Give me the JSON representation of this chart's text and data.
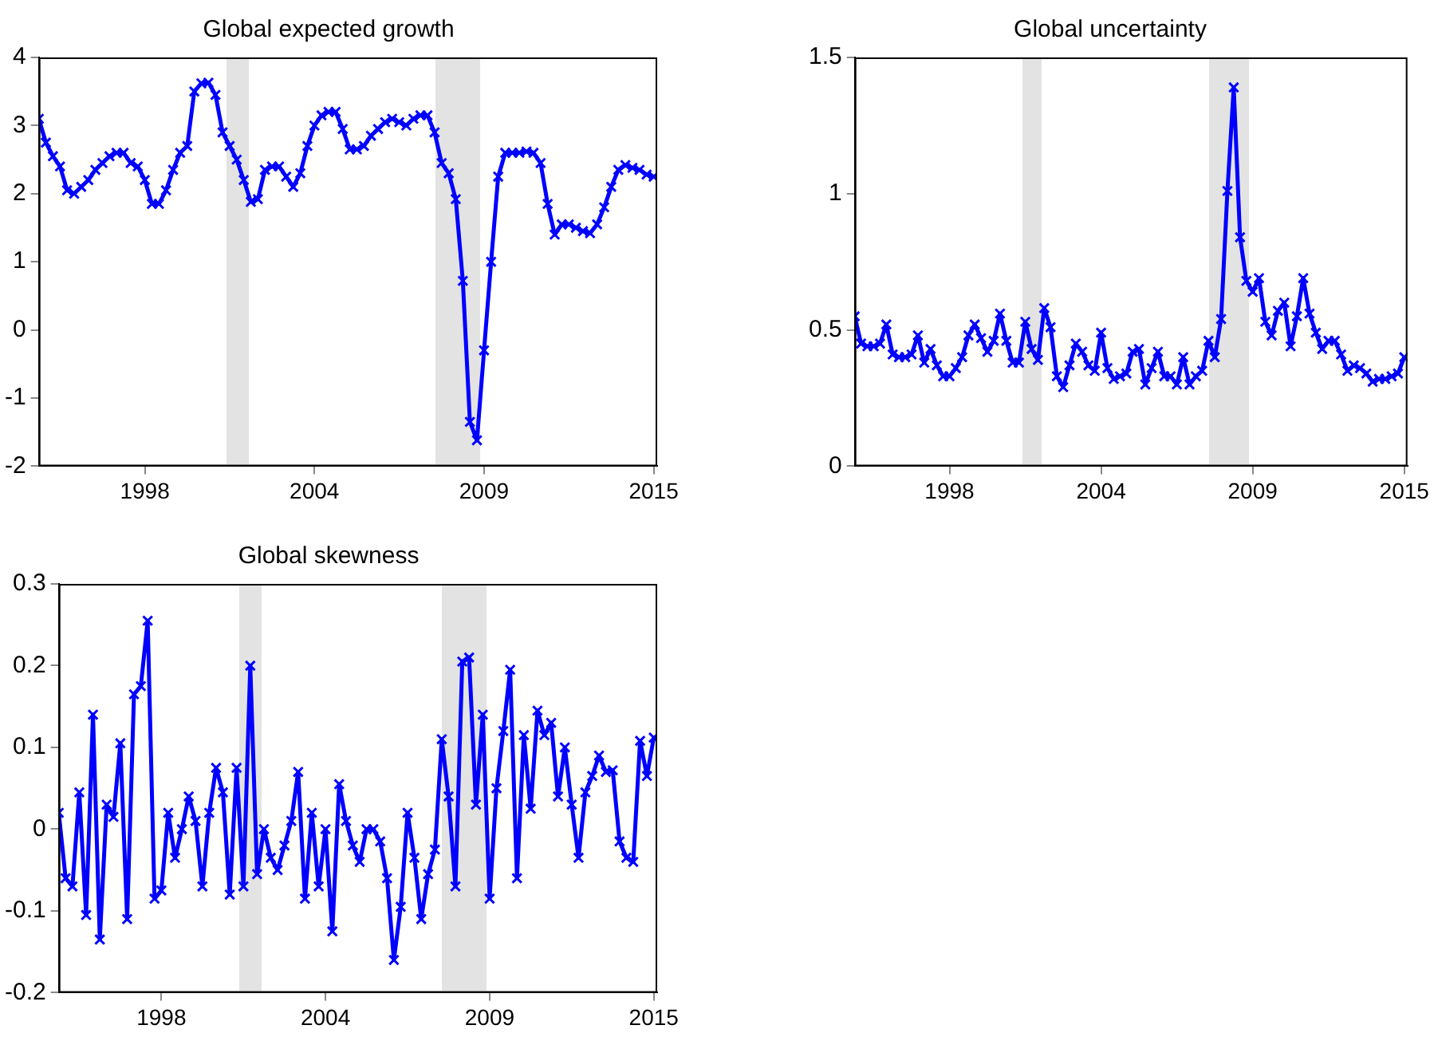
{
  "chart_data": [
    {
      "type": "line",
      "title": "Global expected growth",
      "categories": [
        null,
        null,
        null,
        null,
        null,
        null,
        null,
        null,
        null,
        null,
        null,
        null,
        null,
        null,
        null,
        "1998",
        null,
        null,
        null,
        null,
        null,
        null,
        null,
        null,
        null,
        null,
        null,
        null,
        null,
        null,
        null,
        null,
        null,
        null,
        null,
        null,
        null,
        null,
        null,
        "2004",
        null,
        null,
        null,
        null,
        null,
        null,
        null,
        null,
        null,
        null,
        null,
        null,
        null,
        null,
        null,
        null,
        null,
        null,
        null,
        null,
        null,
        null,
        null,
        "2009",
        null,
        null,
        null,
        null,
        null,
        null,
        null,
        null,
        null,
        null,
        null,
        null,
        null,
        null,
        null,
        null,
        null,
        null,
        null,
        null,
        null,
        null,
        null,
        "2015"
      ],
      "series": [
        {
          "color": "#0000ff",
          "values": [
            3.1,
            2.75,
            2.55,
            2.4,
            2.05,
            2.0,
            2.1,
            2.2,
            2.35,
            2.45,
            2.55,
            2.6,
            2.6,
            2.45,
            2.4,
            2.2,
            1.85,
            1.85,
            2.05,
            2.35,
            2.6,
            2.7,
            3.5,
            3.62,
            3.63,
            3.45,
            2.9,
            2.7,
            2.5,
            2.2,
            1.88,
            1.92,
            2.35,
            2.4,
            2.4,
            2.25,
            2.1,
            2.3,
            2.7,
            3.0,
            3.15,
            3.2,
            3.2,
            2.95,
            2.65,
            2.65,
            2.7,
            2.85,
            2.95,
            3.05,
            3.1,
            3.05,
            3.0,
            3.1,
            3.15,
            3.15,
            2.9,
            2.45,
            2.3,
            1.92,
            0.72,
            -1.35,
            -1.62,
            -0.3,
            1.0,
            2.25,
            2.6,
            2.6,
            2.6,
            2.62,
            2.6,
            2.45,
            1.85,
            1.4,
            1.55,
            1.55,
            1.5,
            1.45,
            1.42,
            1.55,
            1.8,
            2.1,
            2.35,
            2.42,
            2.38,
            2.35,
            2.28,
            2.25
          ]
        }
      ],
      "ylim": [
        -2,
        4
      ],
      "yticks": [
        -2,
        -1,
        0,
        1,
        2,
        3,
        4
      ],
      "marker": "cross",
      "line_style": "solid"
    },
    {
      "type": "line",
      "title": "Global uncertainty",
      "categories": [
        null,
        null,
        null,
        null,
        null,
        null,
        null,
        null,
        null,
        null,
        null,
        null,
        null,
        null,
        null,
        "1998",
        null,
        null,
        null,
        null,
        null,
        null,
        null,
        null,
        null,
        null,
        null,
        null,
        null,
        null,
        null,
        null,
        null,
        null,
        null,
        null,
        null,
        null,
        null,
        "2004",
        null,
        null,
        null,
        null,
        null,
        null,
        null,
        null,
        null,
        null,
        null,
        null,
        null,
        null,
        null,
        null,
        null,
        null,
        null,
        null,
        null,
        null,
        null,
        "2009",
        null,
        null,
        null,
        null,
        null,
        null,
        null,
        null,
        null,
        null,
        null,
        null,
        null,
        null,
        null,
        null,
        null,
        null,
        null,
        null,
        null,
        null,
        null,
        "2015"
      ],
      "series": [
        {
          "color": "#0000ff",
          "values": [
            0.55,
            0.45,
            0.44,
            0.44,
            0.45,
            0.52,
            0.41,
            0.4,
            0.4,
            0.41,
            0.48,
            0.38,
            0.43,
            0.37,
            0.33,
            0.33,
            0.36,
            0.4,
            0.48,
            0.52,
            0.47,
            0.42,
            0.46,
            0.56,
            0.46,
            0.38,
            0.38,
            0.53,
            0.43,
            0.39,
            0.58,
            0.51,
            0.33,
            0.29,
            0.37,
            0.45,
            0.42,
            0.37,
            0.35,
            0.49,
            0.36,
            0.32,
            0.33,
            0.34,
            0.42,
            0.43,
            0.3,
            0.36,
            0.42,
            0.33,
            0.33,
            0.3,
            0.4,
            0.3,
            0.33,
            0.35,
            0.46,
            0.4,
            0.54,
            1.01,
            1.39,
            0.84,
            0.68,
            0.64,
            0.69,
            0.53,
            0.48,
            0.57,
            0.6,
            0.44,
            0.55,
            0.69,
            0.56,
            0.49,
            0.43,
            0.46,
            0.46,
            0.41,
            0.35,
            0.37,
            0.36,
            0.34,
            0.31,
            0.32,
            0.32,
            0.33,
            0.34,
            0.4
          ]
        }
      ],
      "ylim": [
        0,
        1.5
      ],
      "yticks": [
        0,
        0.5,
        1,
        1.5
      ],
      "marker": "cross",
      "line_style": "solid"
    },
    {
      "type": "line",
      "title": "Global skewness",
      "categories": [
        null,
        null,
        null,
        null,
        null,
        null,
        null,
        null,
        null,
        null,
        null,
        null,
        null,
        null,
        null,
        "1998",
        null,
        null,
        null,
        null,
        null,
        null,
        null,
        null,
        null,
        null,
        null,
        null,
        null,
        null,
        null,
        null,
        null,
        null,
        null,
        null,
        null,
        null,
        null,
        "2004",
        null,
        null,
        null,
        null,
        null,
        null,
        null,
        null,
        null,
        null,
        null,
        null,
        null,
        null,
        null,
        null,
        null,
        null,
        null,
        null,
        null,
        null,
        null,
        "2009",
        null,
        null,
        null,
        null,
        null,
        null,
        null,
        null,
        null,
        null,
        null,
        null,
        null,
        null,
        null,
        null,
        null,
        null,
        null,
        null,
        null,
        null,
        null,
        "2015"
      ],
      "series": [
        {
          "color": "#0000ff",
          "values": [
            0.02,
            -0.06,
            -0.07,
            0.045,
            -0.105,
            0.14,
            -0.135,
            0.03,
            0.015,
            0.105,
            -0.11,
            0.165,
            0.175,
            0.255,
            -0.085,
            -0.075,
            0.02,
            -0.035,
            0,
            0.04,
            0.01,
            -0.07,
            0.02,
            0.075,
            0.045,
            -0.08,
            0.075,
            -0.07,
            0.2,
            -0.055,
            0,
            -0.035,
            -0.05,
            -0.02,
            0.01,
            0.07,
            -0.085,
            0.02,
            -0.07,
            0,
            -0.125,
            0.055,
            0.01,
            -0.02,
            -0.04,
            0,
            0,
            -0.015,
            -0.06,
            -0.16,
            -0.095,
            0.02,
            -0.035,
            -0.11,
            -0.055,
            -0.025,
            0.11,
            0.04,
            -0.07,
            0.205,
            0.21,
            0.03,
            0.14,
            -0.085,
            0.05,
            0.12,
            0.195,
            -0.06,
            0.115,
            0.025,
            0.145,
            0.115,
            0.13,
            0.04,
            0.1,
            0.03,
            -0.035,
            0.045,
            0.065,
            0.09,
            0.07,
            0.072,
            -0.015,
            -0.035,
            -0.04,
            0.108,
            0.065,
            0.112
          ]
        }
      ],
      "ylim": [
        -0.2,
        0.3
      ],
      "yticks": [
        -0.2,
        -0.1,
        0,
        0.1,
        0.2,
        0.3
      ],
      "marker": "cross",
      "line_style": "solid"
    }
  ]
}
